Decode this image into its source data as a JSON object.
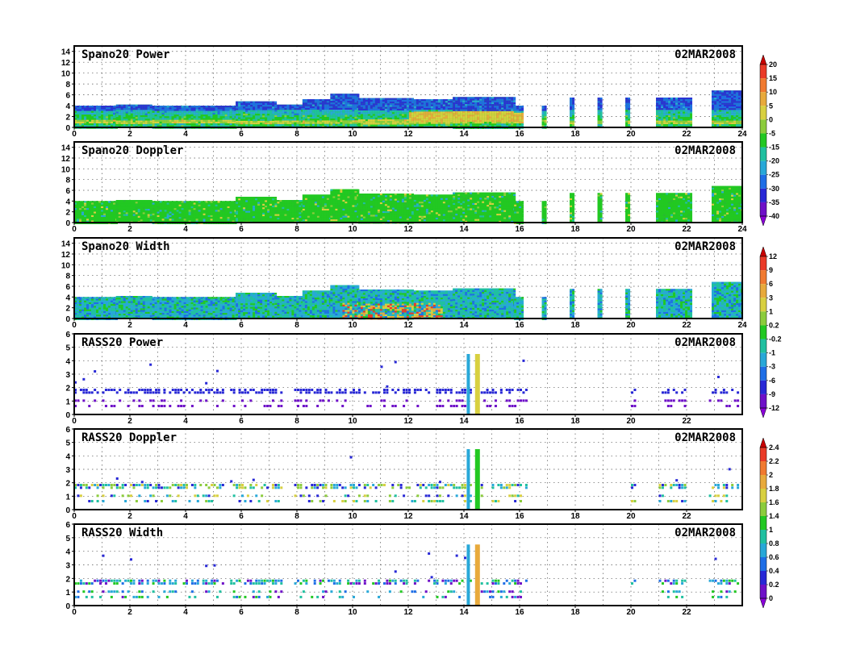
{
  "chart_data": [
    {
      "type": "heatmap",
      "title": "Spano20 Power",
      "date": "02MAR2008",
      "xticks": [
        0,
        2,
        4,
        6,
        8,
        10,
        12,
        14,
        16,
        18,
        20,
        22,
        24
      ],
      "yticks": [
        0,
        2,
        4,
        6,
        8,
        10,
        12,
        14
      ],
      "xlim": [
        0,
        24
      ],
      "ylim": [
        0,
        15
      ],
      "grid": true,
      "coverage": [
        [
          0,
          1.5,
          4
        ],
        [
          1.5,
          2.8,
          4.2
        ],
        [
          2.8,
          5.8,
          4
        ],
        [
          5.8,
          7.2,
          4.8
        ],
        [
          7.2,
          8.2,
          4.2
        ],
        [
          8.2,
          9.2,
          5.2
        ],
        [
          9.2,
          10.2,
          6.2
        ],
        [
          10.2,
          12.2,
          5.4
        ],
        [
          12.2,
          13.6,
          5.2
        ],
        [
          13.6,
          15.8,
          5.6
        ],
        [
          15.8,
          16.1,
          4
        ],
        [
          16.8,
          16.95,
          4
        ],
        [
          17.8,
          17.95,
          5.5
        ],
        [
          18.8,
          18.95,
          5.5
        ],
        [
          19.8,
          19.95,
          5.5
        ],
        [
          20.9,
          22.2,
          5.5
        ],
        [
          22.9,
          24,
          6.8
        ]
      ],
      "colorbar": {
        "labels": [
          "20",
          "15",
          "10",
          "5",
          "0",
          "-5",
          "-15",
          "-20",
          "-25",
          "-30",
          "-35",
          "-40"
        ],
        "colors": [
          "#c80000",
          "#ea3a28",
          "#f07a30",
          "#e8aa3c",
          "#d8d040",
          "#8ccc3c",
          "#22c822",
          "#20c0a0",
          "#28a8d8",
          "#1e6ee6",
          "#2828d6",
          "#6e10c8",
          "#8a00d8"
        ]
      }
    },
    {
      "type": "heatmap",
      "title": "Spano20 Doppler",
      "date": "02MAR2008",
      "xticks": [
        0,
        2,
        4,
        6,
        8,
        10,
        12,
        14,
        16,
        18,
        20,
        22,
        24
      ],
      "yticks": [
        0,
        2,
        4,
        6,
        8,
        10,
        12,
        14
      ],
      "xlim": [
        0,
        24
      ],
      "ylim": [
        0,
        15
      ],
      "grid": true,
      "coverage": [
        [
          0,
          1.5,
          4
        ],
        [
          1.5,
          2.8,
          4.2
        ],
        [
          2.8,
          5.8,
          4
        ],
        [
          5.8,
          7.2,
          4.8
        ],
        [
          7.2,
          8.2,
          4.2
        ],
        [
          8.2,
          9.2,
          5.2
        ],
        [
          9.2,
          10.2,
          6.2
        ],
        [
          10.2,
          12.2,
          5.4
        ],
        [
          12.2,
          13.6,
          5.2
        ],
        [
          13.6,
          15.8,
          5.6
        ],
        [
          15.8,
          16.1,
          4
        ],
        [
          16.8,
          16.95,
          4
        ],
        [
          17.8,
          17.95,
          5.5
        ],
        [
          18.8,
          18.95,
          5.5
        ],
        [
          19.8,
          19.95,
          5.5
        ],
        [
          20.9,
          22.2,
          5.5
        ],
        [
          22.9,
          24,
          6.8
        ]
      ]
    },
    {
      "type": "heatmap",
      "title": "Spano20 Width",
      "date": "02MAR2008",
      "xticks": [
        0,
        2,
        4,
        6,
        8,
        10,
        12,
        14,
        16,
        18,
        20,
        22,
        24
      ],
      "yticks": [
        0,
        2,
        4,
        6,
        8,
        10,
        12,
        14
      ],
      "xlim": [
        0,
        24
      ],
      "ylim": [
        0,
        15
      ],
      "grid": true,
      "coverage": [
        [
          0,
          1.5,
          4
        ],
        [
          1.5,
          2.8,
          4.2
        ],
        [
          2.8,
          5.8,
          4
        ],
        [
          5.8,
          7.2,
          4.8
        ],
        [
          7.2,
          8.2,
          4.2
        ],
        [
          8.2,
          9.2,
          5.2
        ],
        [
          9.2,
          10.2,
          6.2
        ],
        [
          10.2,
          12.2,
          5.4
        ],
        [
          12.2,
          13.6,
          5.2
        ],
        [
          13.6,
          15.8,
          5.6
        ],
        [
          15.8,
          16.1,
          4
        ],
        [
          16.8,
          16.95,
          4
        ],
        [
          17.8,
          17.95,
          5.5
        ],
        [
          18.8,
          18.95,
          5.5
        ],
        [
          19.8,
          19.95,
          5.5
        ],
        [
          20.9,
          22.2,
          5.5
        ],
        [
          22.9,
          24,
          6.8
        ]
      ],
      "colorbar": {
        "labels": [
          "12",
          "9",
          "6",
          "3",
          "1",
          "0.2",
          "-0.2",
          "-1",
          "-3",
          "-6",
          "-9",
          "-12"
        ],
        "colors": [
          "#c80000",
          "#ea3a28",
          "#f07a30",
          "#e8aa3c",
          "#d8d040",
          "#8ccc3c",
          "#22c822",
          "#20c0a0",
          "#28a8d8",
          "#1e6ee6",
          "#2828d6",
          "#6e10c8",
          "#8a00d8"
        ]
      }
    },
    {
      "type": "heatmap",
      "title": "RASS20 Power",
      "date": "02MAR2008",
      "xticks": [
        0,
        2,
        4,
        6,
        8,
        10,
        12,
        14,
        16,
        18,
        20,
        22
      ],
      "yticks": [
        0,
        1,
        2,
        3,
        4,
        5,
        6
      ],
      "xlim": [
        0,
        24
      ],
      "ylim": [
        0,
        6
      ],
      "grid": true
    },
    {
      "type": "heatmap",
      "title": "RASS20 Doppler",
      "date": "02MAR2008",
      "xticks": [
        0,
        2,
        4,
        6,
        8,
        10,
        12,
        14,
        16,
        18,
        20,
        22
      ],
      "yticks": [
        0,
        1,
        2,
        3,
        4,
        5,
        6
      ],
      "xlim": [
        0,
        24
      ],
      "ylim": [
        0,
        6
      ],
      "grid": true,
      "colorbar": {
        "labels": [
          "2.4",
          "2.2",
          "2",
          "1.8",
          "1.6",
          "1.4",
          "1",
          "0.8",
          "0.6",
          "0.4",
          "0.2",
          "0"
        ],
        "colors": [
          "#c80000",
          "#ea3a28",
          "#f07a30",
          "#e8aa3c",
          "#d8d040",
          "#8ccc3c",
          "#22c822",
          "#20c0a0",
          "#28a8d8",
          "#1e6ee6",
          "#2828d6",
          "#6e10c8",
          "#8a00d8"
        ]
      }
    },
    {
      "type": "heatmap",
      "title": "RASS20 Width",
      "date": "02MAR2008",
      "xticks": [
        0,
        2,
        4,
        6,
        8,
        10,
        12,
        14,
        16,
        18,
        20,
        22
      ],
      "yticks": [
        0,
        1,
        2,
        3,
        4,
        5,
        6
      ],
      "xlim": [
        0,
        24
      ],
      "ylim": [
        0,
        6
      ],
      "grid": true
    }
  ]
}
